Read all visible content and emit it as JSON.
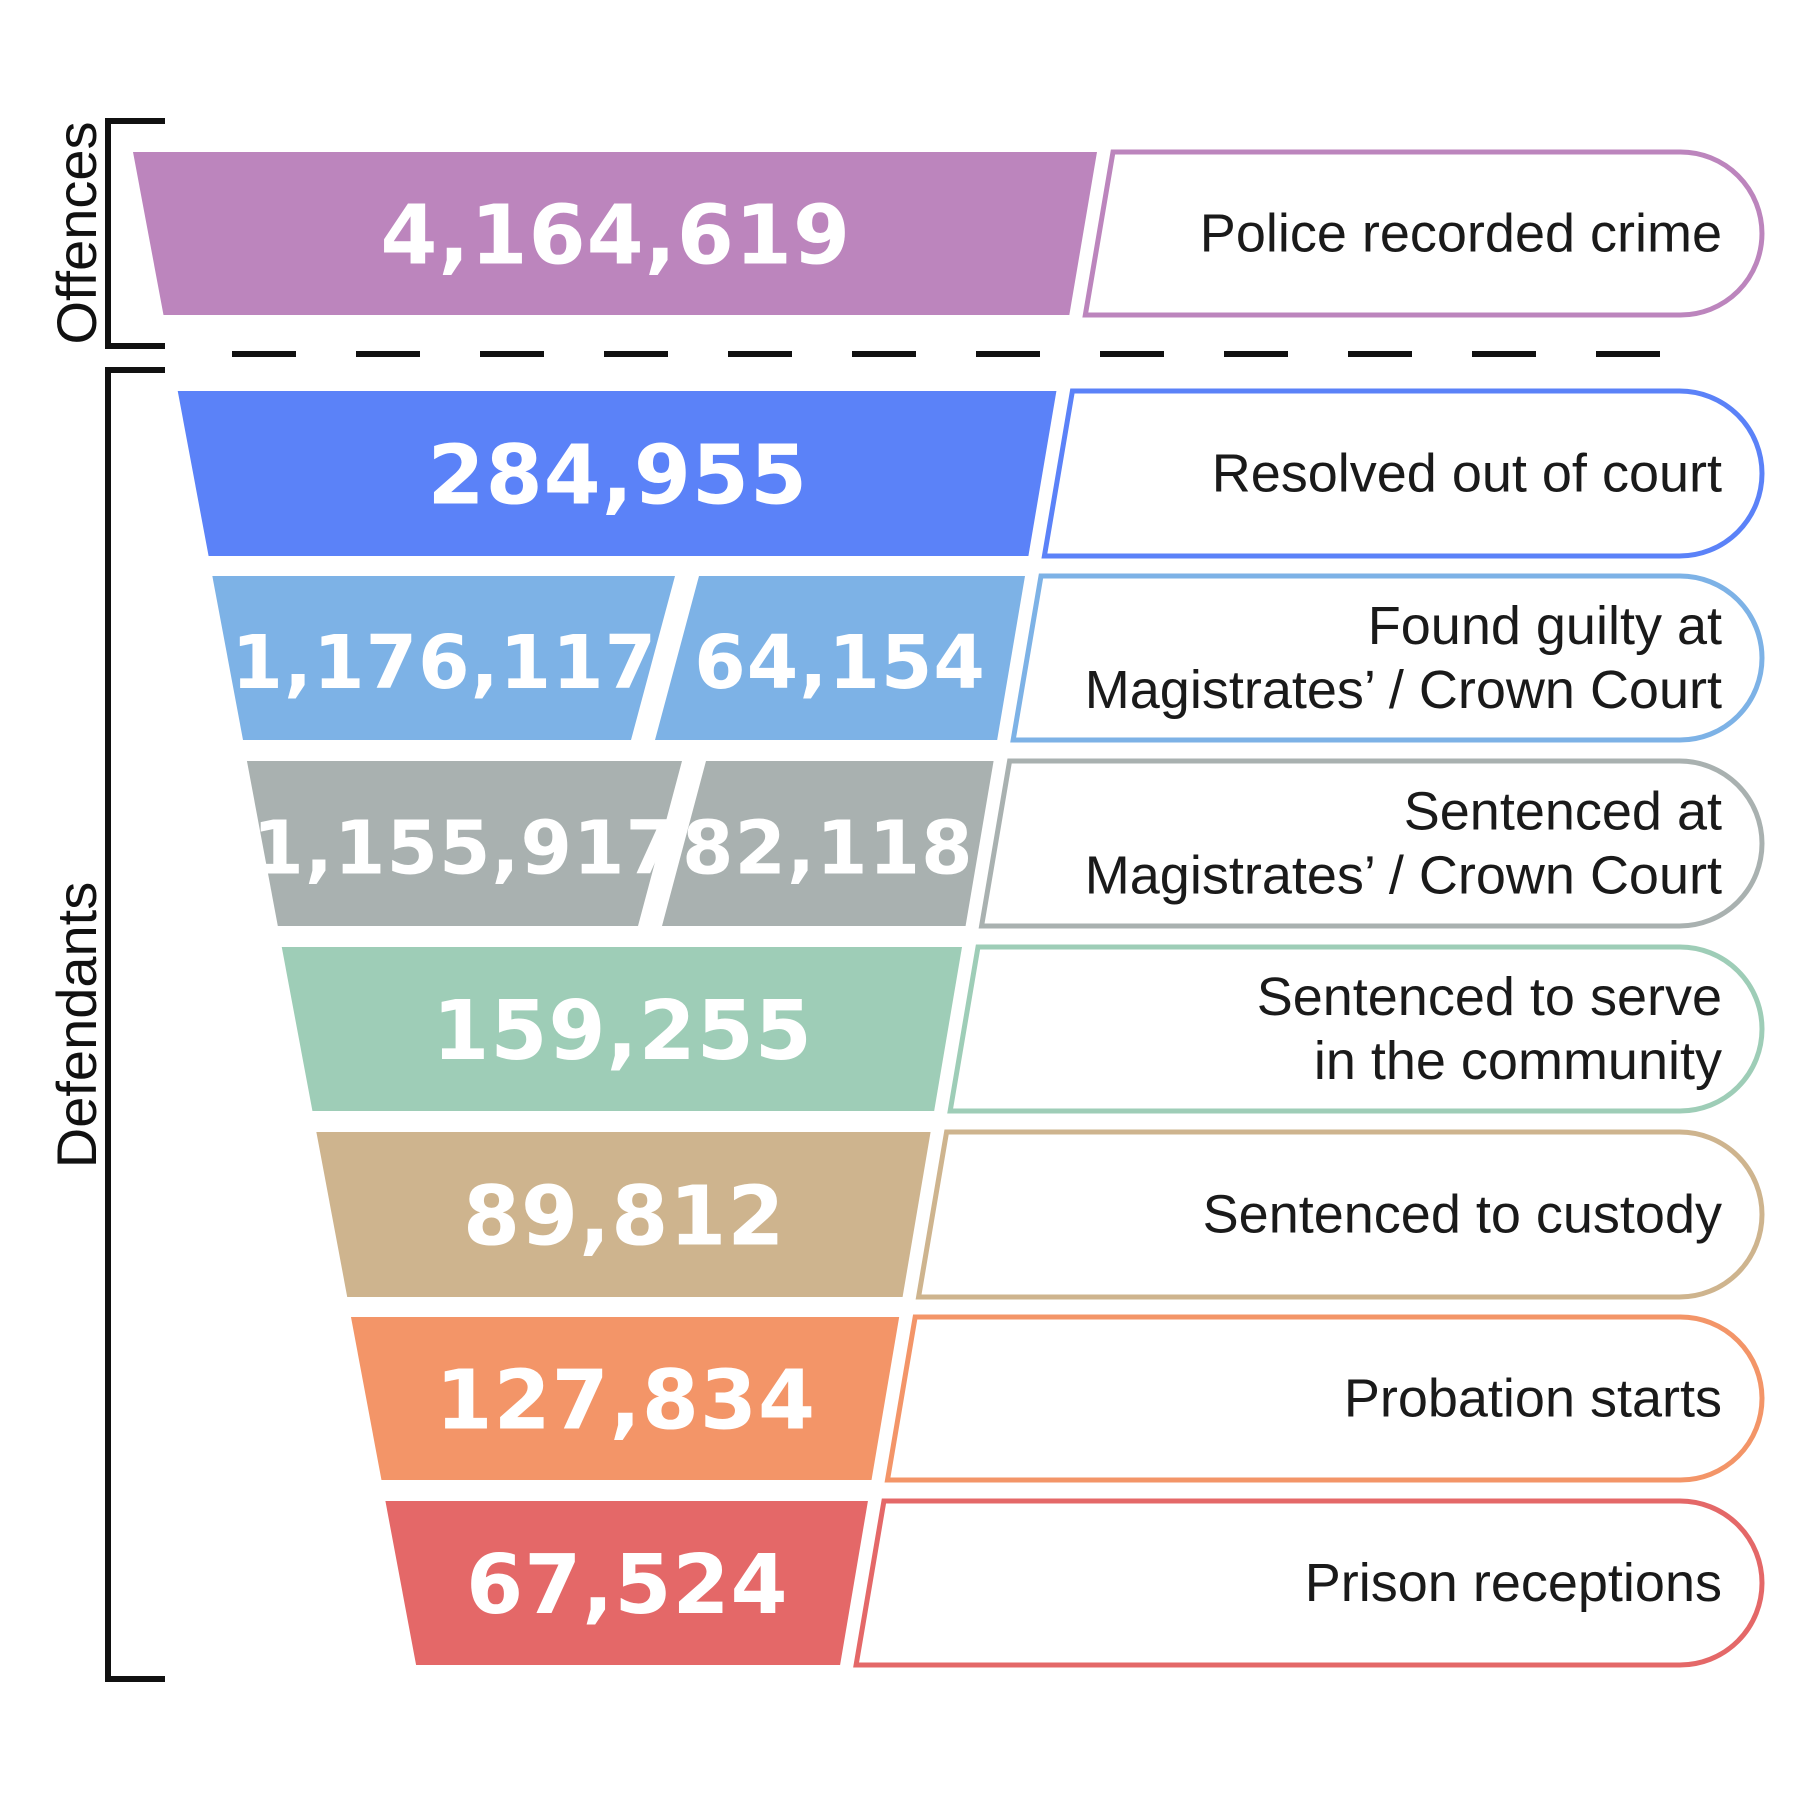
{
  "groups": {
    "offences": "Offences",
    "defendants": "Defendants"
  },
  "stages": [
    {
      "values": [
        "4,164,619"
      ],
      "label": [
        "Police recorded crime"
      ],
      "color": "#BC85BD"
    },
    {
      "values": [
        "284,955"
      ],
      "label": [
        "Resolved out of court"
      ],
      "color": "#5B82F8"
    },
    {
      "values": [
        "1,176,117",
        "64,154"
      ],
      "label": [
        "Found guilty at",
        "Magistrates’ / Crown Court"
      ],
      "color": "#7DB2E6"
    },
    {
      "values": [
        "1,155,917",
        "82,118"
      ],
      "label": [
        "Sentenced at",
        "Magistrates’ / Crown Court"
      ],
      "color": "#A9B1B0"
    },
    {
      "values": [
        "159,255"
      ],
      "label": [
        "Sentenced to serve",
        "in the community"
      ],
      "color": "#9ECDB7"
    },
    {
      "values": [
        "89,812"
      ],
      "label": [
        "Sentenced to custody"
      ],
      "color": "#CEB48E"
    },
    {
      "values": [
        "127,834"
      ],
      "label": [
        "Probation starts"
      ],
      "color": "#F39568"
    },
    {
      "values": [
        "67,524"
      ],
      "label": [
        "Prison receptions"
      ],
      "color": "#E46868"
    }
  ]
}
